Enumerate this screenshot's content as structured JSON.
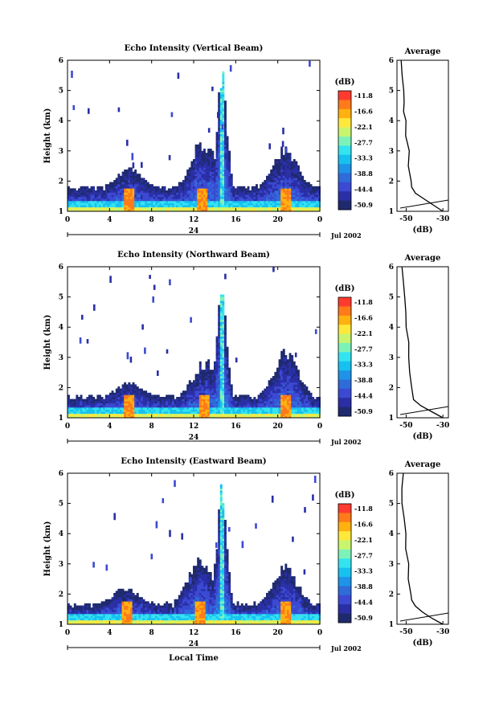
{
  "chart_data": [
    {
      "type": "heatmap",
      "title": "Echo Intensity (Vertical Beam)",
      "ylabel": "Height (km)",
      "yticks": [
        "1",
        "2",
        "3",
        "4",
        "5",
        "6"
      ],
      "xticks": [
        "0",
        "4",
        "8",
        "12",
        "16",
        "20",
        "0"
      ],
      "date_day": "24",
      "date_tail": "Jul 2002",
      "xlim": [
        0,
        24
      ],
      "ylim": [
        1,
        6
      ],
      "cloud_top_km": 1.82,
      "features": [
        {
          "kind": "column",
          "hour": 14.6,
          "top_km": 6.0
        },
        {
          "kind": "cell",
          "hour": 20.6,
          "top_km": 3.2
        },
        {
          "kind": "cell",
          "hour": 12.8,
          "top_km": 3.5
        },
        {
          "kind": "cell",
          "hour": 5.8,
          "top_km": 2.5
        }
      ],
      "colorbar": {
        "unit": "(dB)",
        "ticks": [
          "-11.8",
          "-16.6",
          "-22.1",
          "-27.7",
          "-33.3",
          "-38.8",
          "-44.4",
          "-50.9"
        ]
      },
      "average_profile": {
        "title": "Average",
        "xlabel": "(dB)",
        "xticks": [
          "-50",
          "-30"
        ],
        "yticks": [
          "1",
          "2",
          "3",
          "4",
          "5",
          "6"
        ],
        "heights_km": [
          1.0,
          1.2,
          1.4,
          1.6,
          1.8,
          2.0,
          2.5,
          3.0,
          3.5,
          4.0,
          4.3,
          4.6,
          5.0,
          5.5,
          6.0
        ],
        "db": [
          -30,
          -35,
          -40,
          -45,
          -47,
          -48,
          -48.5,
          -49,
          -49.5,
          -50,
          -51,
          -51,
          -51.5,
          -51.5,
          -52
        ]
      }
    },
    {
      "type": "heatmap",
      "title": "Echo Intensity (Northward Beam)",
      "ylabel": "Height (km)",
      "yticks": [
        "1",
        "2",
        "3",
        "4",
        "5",
        "6"
      ],
      "xticks": [
        "0",
        "4",
        "8",
        "12",
        "16",
        "20",
        "0"
      ],
      "date_day": "24",
      "date_tail": "Jul 2002",
      "xlim": [
        0,
        24
      ],
      "ylim": [
        1,
        6
      ],
      "cloud_top_km": 1.75,
      "features": [
        {
          "kind": "column",
          "hour": 14.6,
          "top_km": 5.7
        },
        {
          "kind": "cell",
          "hour": 20.7,
          "top_km": 3.3
        },
        {
          "kind": "cell",
          "hour": 13.0,
          "top_km": 3.0
        },
        {
          "kind": "cell",
          "hour": 5.8,
          "top_km": 2.2
        }
      ],
      "colorbar": {
        "unit": "(dB)",
        "ticks": [
          "-11.8",
          "-16.6",
          "-22.1",
          "-27.7",
          "-33.3",
          "-38.8",
          "-44.4",
          "-50.9"
        ]
      },
      "average_profile": {
        "title": "Average",
        "xlabel": "(dB)",
        "xticks": [
          "-50",
          "-30"
        ],
        "yticks": [
          "1",
          "2",
          "3",
          "4",
          "5",
          "6"
        ],
        "heights_km": [
          1.0,
          1.2,
          1.4,
          1.6,
          2.0,
          2.5,
          3.0,
          3.5,
          4.0,
          4.5,
          5.0,
          5.5,
          6.0
        ],
        "db": [
          -30,
          -36,
          -42,
          -46,
          -47,
          -47.5,
          -48,
          -49,
          -50,
          -50.5,
          -51,
          -51.5,
          -52
        ]
      }
    },
    {
      "type": "heatmap",
      "title": "Echo Intensity (Eastward Beam)",
      "ylabel": "Height (km)",
      "xlabel": "Local Time",
      "yticks": [
        "1",
        "2",
        "3",
        "4",
        "5",
        "6"
      ],
      "xticks": [
        "0",
        "4",
        "8",
        "12",
        "16",
        "20",
        "0"
      ],
      "date_day": "24",
      "date_tail": "Jul 2002",
      "xlim": [
        0,
        24
      ],
      "ylim": [
        1,
        6
      ],
      "cloud_top_km": 1.7,
      "features": [
        {
          "kind": "column",
          "hour": 14.6,
          "top_km": 5.8
        },
        {
          "kind": "cell",
          "hour": 20.6,
          "top_km": 3.0
        },
        {
          "kind": "cell",
          "hour": 12.5,
          "top_km": 3.3
        },
        {
          "kind": "cell",
          "hour": 5.5,
          "top_km": 2.3
        }
      ],
      "colorbar": {
        "unit": "(dB)",
        "ticks": [
          "-11.8",
          "-16.6",
          "-22.1",
          "-27.7",
          "-33.3",
          "-38.8",
          "-44.4",
          "-50.9"
        ]
      },
      "average_profile": {
        "title": "Average",
        "xlabel": "(dB)",
        "xticks": [
          "-50",
          "-30"
        ],
        "yticks": [
          "1",
          "2",
          "3",
          "4",
          "5",
          "6"
        ],
        "heights_km": [
          1.0,
          1.2,
          1.4,
          1.6,
          1.8,
          2.0,
          2.5,
          3.0,
          3.5,
          4.0,
          4.5,
          5.0,
          5.5,
          6.0
        ],
        "db": [
          -30,
          -36,
          -41,
          -45,
          -47,
          -48,
          -48.5,
          -49,
          -49.5,
          -50.5,
          -51,
          -51.5,
          -52,
          -52
        ]
      }
    }
  ],
  "palette": [
    "#ff3b2f",
    "#ff7a1a",
    "#ffb10f",
    "#ffe83c",
    "#c8f56d",
    "#7df2b8",
    "#34e3f0",
    "#17c1ef",
    "#1e93e8",
    "#2f6bd9",
    "#3b49d3",
    "#2a2fa6",
    "#1f2a6e"
  ]
}
